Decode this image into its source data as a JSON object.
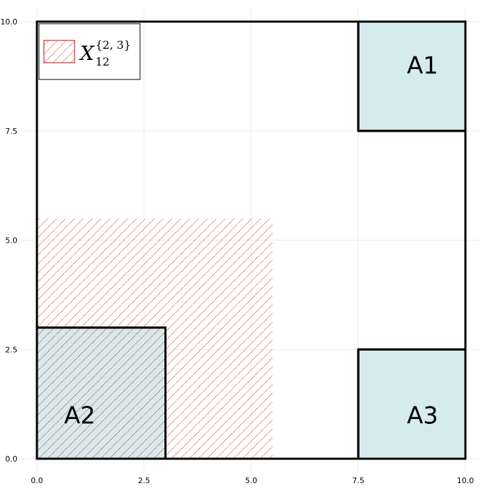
{
  "chart_data": {
    "type": "rectangles",
    "title": "",
    "xlabel": "",
    "ylabel": "",
    "xlim": [
      0,
      10
    ],
    "ylim": [
      0,
      10
    ],
    "grid": true,
    "x_ticks": [
      "0.0",
      "2.5",
      "5.0",
      "7.5",
      "10.0"
    ],
    "y_ticks": [
      "0.0",
      "2.5",
      "5.0",
      "7.5",
      "10.0"
    ],
    "x_tick_values": [
      0,
      2.5,
      5,
      7.5,
      10
    ],
    "y_tick_values": [
      0,
      2.5,
      5,
      7.5,
      10
    ],
    "regions": [
      {
        "label": "A1",
        "x0": 7.5,
        "x1": 10,
        "y0": 7.5,
        "y1": 10,
        "fill": "#d6ebec",
        "label_x": 9.0,
        "label_y": 9.0
      },
      {
        "label": "A2",
        "x0": 0,
        "x1": 3,
        "y0": 0,
        "y1": 3,
        "fill": "#d6ebec",
        "label_x": 1.0,
        "label_y": 1.0
      },
      {
        "label": "A3",
        "x0": 7.5,
        "x1": 10,
        "y0": 0,
        "y1": 2.5,
        "fill": "#d6ebec",
        "label_x": 9.0,
        "label_y": 1.0
      }
    ],
    "hatched_region": {
      "x0": 0,
      "x1": 5.5,
      "y0": 0,
      "y1": 5.5,
      "color": "#d00000"
    },
    "legend": {
      "placement": "top-left",
      "symbol": "X",
      "subscript": "12",
      "superscript": "{2, 3}"
    }
  }
}
